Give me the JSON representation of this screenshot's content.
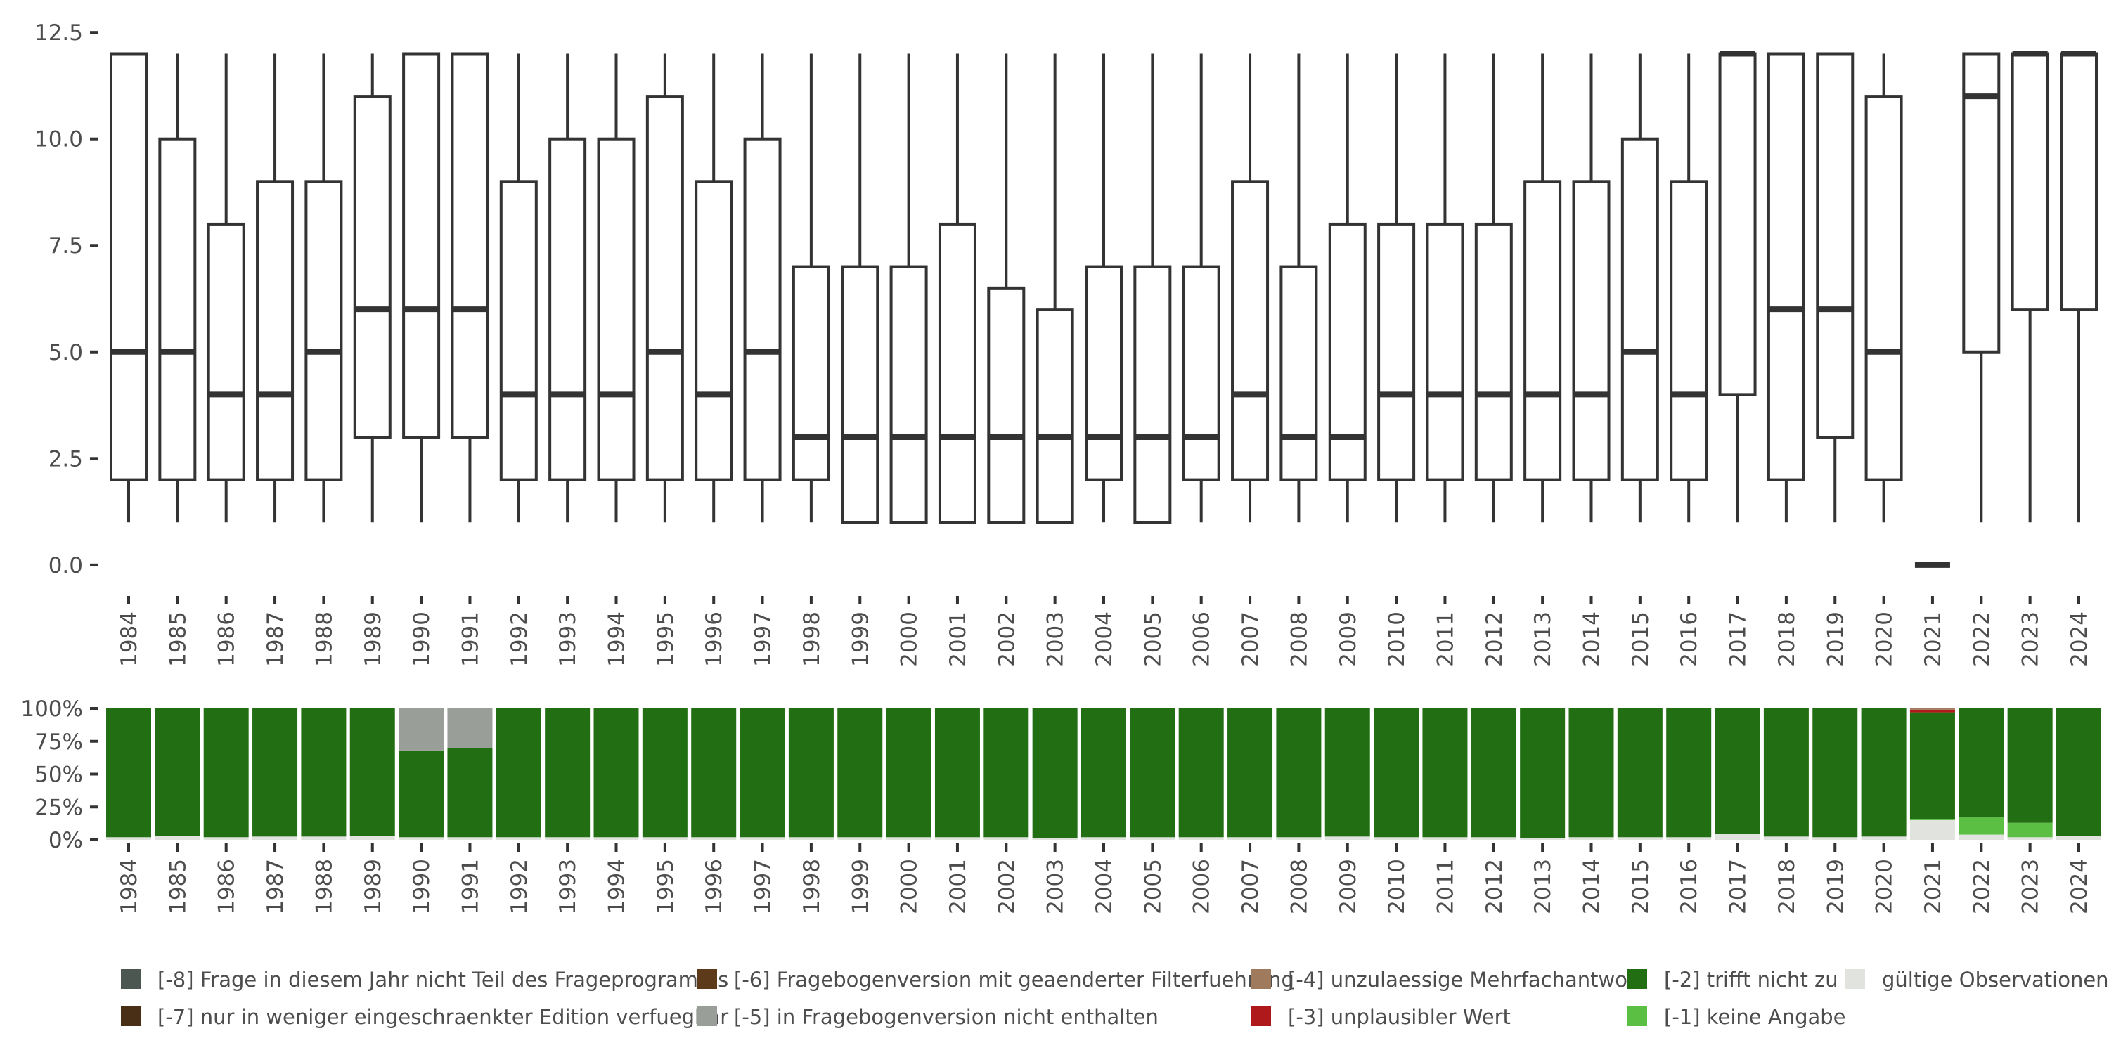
{
  "chart_data": [
    {
      "type": "boxplot",
      "years": [
        "1984",
        "1985",
        "1986",
        "1987",
        "1988",
        "1989",
        "1990",
        "1991",
        "1992",
        "1993",
        "1994",
        "1995",
        "1996",
        "1997",
        "1998",
        "1999",
        "2000",
        "2001",
        "2002",
        "2003",
        "2004",
        "2005",
        "2006",
        "2007",
        "2008",
        "2009",
        "2010",
        "2011",
        "2012",
        "2013",
        "2014",
        "2015",
        "2016",
        "2017",
        "2018",
        "2019",
        "2020",
        "2021",
        "2022",
        "2023",
        "2024"
      ],
      "boxes": [
        {
          "lower": 1,
          "q1": 2,
          "median": 5,
          "q3": 12,
          "upper": 12
        },
        {
          "lower": 1,
          "q1": 2,
          "median": 5,
          "q3": 10,
          "upper": 12
        },
        {
          "lower": 1,
          "q1": 2,
          "median": 4,
          "q3": 8,
          "upper": 12
        },
        {
          "lower": 1,
          "q1": 2,
          "median": 4,
          "q3": 9,
          "upper": 12
        },
        {
          "lower": 1,
          "q1": 2,
          "median": 5,
          "q3": 9,
          "upper": 12
        },
        {
          "lower": 1,
          "q1": 3,
          "median": 6,
          "q3": 11,
          "upper": 12
        },
        {
          "lower": 1,
          "q1": 3,
          "median": 6,
          "q3": 12,
          "upper": 12
        },
        {
          "lower": 1,
          "q1": 3,
          "median": 6,
          "q3": 12,
          "upper": 12
        },
        {
          "lower": 1,
          "q1": 2,
          "median": 4,
          "q3": 9,
          "upper": 12
        },
        {
          "lower": 1,
          "q1": 2,
          "median": 4,
          "q3": 10,
          "upper": 12
        },
        {
          "lower": 1,
          "q1": 2,
          "median": 4,
          "q3": 10,
          "upper": 12
        },
        {
          "lower": 1,
          "q1": 2,
          "median": 5,
          "q3": 11,
          "upper": 12
        },
        {
          "lower": 1,
          "q1": 2,
          "median": 4,
          "q3": 9,
          "upper": 12
        },
        {
          "lower": 1,
          "q1": 2,
          "median": 5,
          "q3": 10,
          "upper": 12
        },
        {
          "lower": 1,
          "q1": 2,
          "median": 3,
          "q3": 7,
          "upper": 12
        },
        {
          "lower": 1,
          "q1": 1,
          "median": 3,
          "q3": 7,
          "upper": 12
        },
        {
          "lower": 1,
          "q1": 1,
          "median": 3,
          "q3": 7,
          "upper": 12
        },
        {
          "lower": 1,
          "q1": 1,
          "median": 3,
          "q3": 8,
          "upper": 12
        },
        {
          "lower": 1,
          "q1": 1,
          "median": 3,
          "q3": 6.5,
          "upper": 12
        },
        {
          "lower": 1,
          "q1": 1,
          "median": 3,
          "q3": 6,
          "upper": 12
        },
        {
          "lower": 1,
          "q1": 2,
          "median": 3,
          "q3": 7,
          "upper": 12
        },
        {
          "lower": 1,
          "q1": 1,
          "median": 3,
          "q3": 7,
          "upper": 12
        },
        {
          "lower": 1,
          "q1": 2,
          "median": 3,
          "q3": 7,
          "upper": 12
        },
        {
          "lower": 1,
          "q1": 2,
          "median": 4,
          "q3": 9,
          "upper": 12
        },
        {
          "lower": 1,
          "q1": 2,
          "median": 3,
          "q3": 7,
          "upper": 12
        },
        {
          "lower": 1,
          "q1": 2,
          "median": 3,
          "q3": 8,
          "upper": 12
        },
        {
          "lower": 1,
          "q1": 2,
          "median": 4,
          "q3": 8,
          "upper": 12
        },
        {
          "lower": 1,
          "q1": 2,
          "median": 4,
          "q3": 8,
          "upper": 12
        },
        {
          "lower": 1,
          "q1": 2,
          "median": 4,
          "q3": 8,
          "upper": 12
        },
        {
          "lower": 1,
          "q1": 2,
          "median": 4,
          "q3": 9,
          "upper": 12
        },
        {
          "lower": 1,
          "q1": 2,
          "median": 4,
          "q3": 9,
          "upper": 12
        },
        {
          "lower": 1,
          "q1": 2,
          "median": 5,
          "q3": 10,
          "upper": 12
        },
        {
          "lower": 1,
          "q1": 2,
          "median": 4,
          "q3": 9,
          "upper": 12
        },
        {
          "lower": 1,
          "q1": 4,
          "median": 12,
          "q3": 12,
          "upper": 12
        },
        {
          "lower": 1,
          "q1": 2,
          "median": 6,
          "q3": 12,
          "upper": 12
        },
        {
          "lower": 1,
          "q1": 3,
          "median": 6,
          "q3": 12,
          "upper": 12
        },
        {
          "lower": 1,
          "q1": 2,
          "median": 5,
          "q3": 11,
          "upper": 12
        },
        {
          "lower": 0,
          "q1": 0,
          "median": 0,
          "q3": 0,
          "upper": 0
        },
        {
          "lower": 1,
          "q1": 5,
          "median": 11,
          "q3": 12,
          "upper": 12
        },
        {
          "lower": 1,
          "q1": 6,
          "median": 12,
          "q3": 12,
          "upper": 12
        },
        {
          "lower": 1,
          "q1": 6,
          "median": 12,
          "q3": 12,
          "upper": 12
        }
      ],
      "ylim": [
        -0.3,
        12.8
      ],
      "yticks": [
        0.0,
        2.5,
        5.0,
        7.5,
        10.0,
        12.5
      ],
      "ytick_labels": [
        "0.0",
        "2.5",
        "5.0",
        "7.5",
        "10.0",
        "12.5"
      ]
    },
    {
      "type": "stacked-bar",
      "years": [
        "1984",
        "1985",
        "1986",
        "1987",
        "1988",
        "1989",
        "1990",
        "1991",
        "1992",
        "1993",
        "1994",
        "1995",
        "1996",
        "1997",
        "1998",
        "1999",
        "2000",
        "2001",
        "2002",
        "2003",
        "2004",
        "2005",
        "2006",
        "2007",
        "2008",
        "2009",
        "2010",
        "2011",
        "2012",
        "2013",
        "2014",
        "2015",
        "2016",
        "2017",
        "2018",
        "2019",
        "2020",
        "2021",
        "2022",
        "2023",
        "2024"
      ],
      "stack_order": [
        "valid",
        "m1",
        "m2",
        "m3",
        "m4",
        "m5",
        "m6",
        "m7",
        "m8"
      ],
      "shares_percent": [
        {
          "valid": 2,
          "m2": 98
        },
        {
          "valid": 3,
          "m2": 97
        },
        {
          "valid": 2,
          "m2": 98
        },
        {
          "valid": 2.5,
          "m2": 97.5
        },
        {
          "valid": 2.5,
          "m2": 97.5
        },
        {
          "valid": 3,
          "m2": 97
        },
        {
          "valid": 2,
          "m2": 66,
          "m5": 32
        },
        {
          "valid": 2,
          "m2": 68,
          "m5": 30
        },
        {
          "valid": 2,
          "m2": 98
        },
        {
          "valid": 2,
          "m2": 98
        },
        {
          "valid": 2,
          "m2": 98
        },
        {
          "valid": 2,
          "m2": 98
        },
        {
          "valid": 2,
          "m2": 98
        },
        {
          "valid": 2,
          "m2": 98
        },
        {
          "valid": 2,
          "m2": 98
        },
        {
          "valid": 2,
          "m2": 98
        },
        {
          "valid": 2,
          "m2": 98
        },
        {
          "valid": 2,
          "m2": 98
        },
        {
          "valid": 2,
          "m2": 98
        },
        {
          "valid": 1.5,
          "m2": 98.5
        },
        {
          "valid": 2,
          "m2": 98
        },
        {
          "valid": 2,
          "m2": 98
        },
        {
          "valid": 2,
          "m2": 98
        },
        {
          "valid": 2,
          "m2": 98
        },
        {
          "valid": 2,
          "m2": 98
        },
        {
          "valid": 2.5,
          "m2": 97.5
        },
        {
          "valid": 2,
          "m2": 98
        },
        {
          "valid": 2,
          "m2": 98
        },
        {
          "valid": 2,
          "m2": 98
        },
        {
          "valid": 1.5,
          "m2": 98.5
        },
        {
          "valid": 2,
          "m2": 98
        },
        {
          "valid": 2,
          "m2": 98
        },
        {
          "valid": 2,
          "m2": 98
        },
        {
          "valid": 4.5,
          "m2": 95.5
        },
        {
          "valid": 2.5,
          "m2": 97.5
        },
        {
          "valid": 2,
          "m2": 98
        },
        {
          "valid": 2.5,
          "m2": 97.5
        },
        {
          "valid": 15,
          "m1": 0.5,
          "m2": 81.5,
          "m3": 2,
          "m4": 1
        },
        {
          "valid": 4,
          "m1": 13,
          "m2": 83
        },
        {
          "valid": 2,
          "m1": 11,
          "m2": 87
        },
        {
          "valid": 3,
          "m2": 97
        }
      ],
      "yticks": [
        0,
        25,
        50,
        75,
        100
      ],
      "ytick_labels": [
        "0%",
        "25%",
        "50%",
        "75%",
        "100%"
      ]
    }
  ],
  "legend": [
    {
      "key": "m8",
      "label": "[-8] Frage in diesem Jahr nicht Teil des Frageprogramms",
      "color": "#4d5751"
    },
    {
      "key": "m7",
      "label": "[-7] nur in weniger eingeschraenkter Edition verfuegbar",
      "color": "#4a2f17"
    },
    {
      "key": "m6",
      "label": "[-6] Fragebogenversion mit geaenderter Filterfuehrung",
      "color": "#5c3a1a"
    },
    {
      "key": "m5",
      "label": "[-5] in Fragebogenversion nicht enthalten",
      "color": "#999e98"
    },
    {
      "key": "m4",
      "label": "[-4] unzulaessige Mehrfachantwort",
      "color": "#a07a5d"
    },
    {
      "key": "m3",
      "label": "[-3] unplausibler Wert",
      "color": "#b0191c"
    },
    {
      "key": "m2",
      "label": "[-2] trifft nicht zu",
      "color": "#226e13"
    },
    {
      "key": "m1",
      "label": "[-1] keine Angabe",
      "color": "#5bbf43"
    },
    {
      "key": "valid",
      "label": "gültige Observationen",
      "color": "#e0e3de"
    }
  ]
}
